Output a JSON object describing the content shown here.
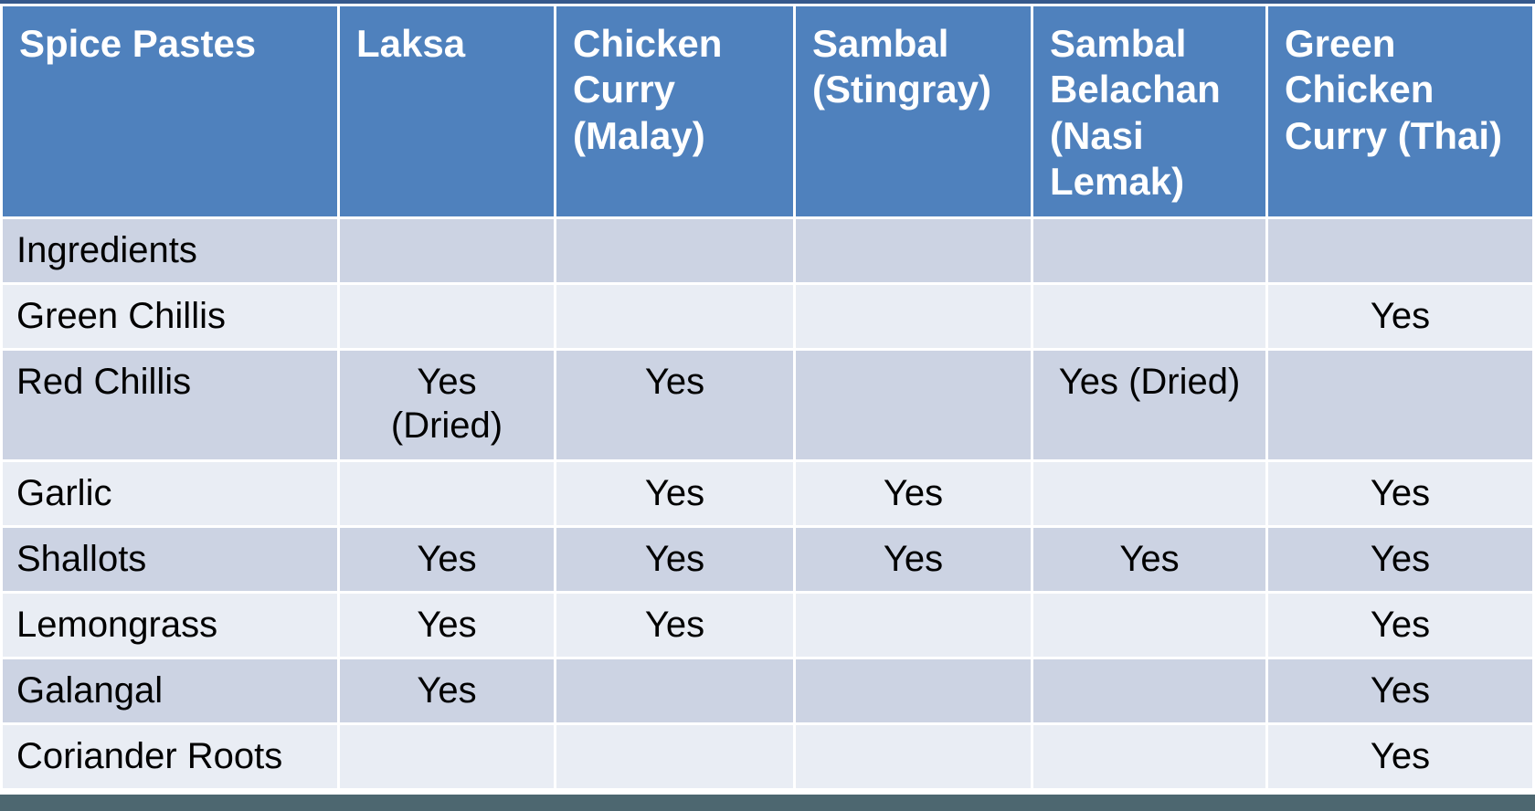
{
  "slide": {
    "table": {
      "header": [
        "Spice Pastes",
        "Laksa",
        "Chicken Curry (Malay)",
        "Sambal (Stingray)",
        "Sambal Belachan (Nasi Lemak)",
        "Green Chicken Curry (Thai)"
      ],
      "rows": [
        {
          "label": "Ingredients",
          "cells": [
            "",
            "",
            "",
            "",
            ""
          ]
        },
        {
          "label": "Green Chillis",
          "cells": [
            "",
            "",
            "",
            "",
            "Yes"
          ]
        },
        {
          "label": "Red Chillis",
          "cells": [
            "Yes (Dried)",
            "Yes",
            "",
            "Yes (Dried)",
            ""
          ]
        },
        {
          "label": "Garlic",
          "cells": [
            "",
            "Yes",
            "Yes",
            "",
            "Yes"
          ]
        },
        {
          "label": "Shallots",
          "cells": [
            "Yes",
            "Yes",
            "Yes",
            "Yes",
            "Yes"
          ]
        },
        {
          "label": "Lemongrass",
          "cells": [
            "Yes",
            "Yes",
            "",
            "",
            "Yes"
          ]
        },
        {
          "label": "Galangal",
          "cells": [
            "Yes",
            "",
            "",
            "",
            "Yes"
          ]
        },
        {
          "label": "Coriander Roots",
          "cells": [
            "",
            "",
            "",
            "",
            "Yes"
          ]
        }
      ]
    },
    "colors": {
      "header-bg": "#4f81bd",
      "header-text": "#ffffff",
      "band-dark": "#ccd3e3",
      "band-light": "#e9edf4",
      "grid-line": "#ffffff",
      "top-border": "#36598c",
      "bottom-bar": "#4d6770",
      "body-text": "#000000"
    }
  }
}
